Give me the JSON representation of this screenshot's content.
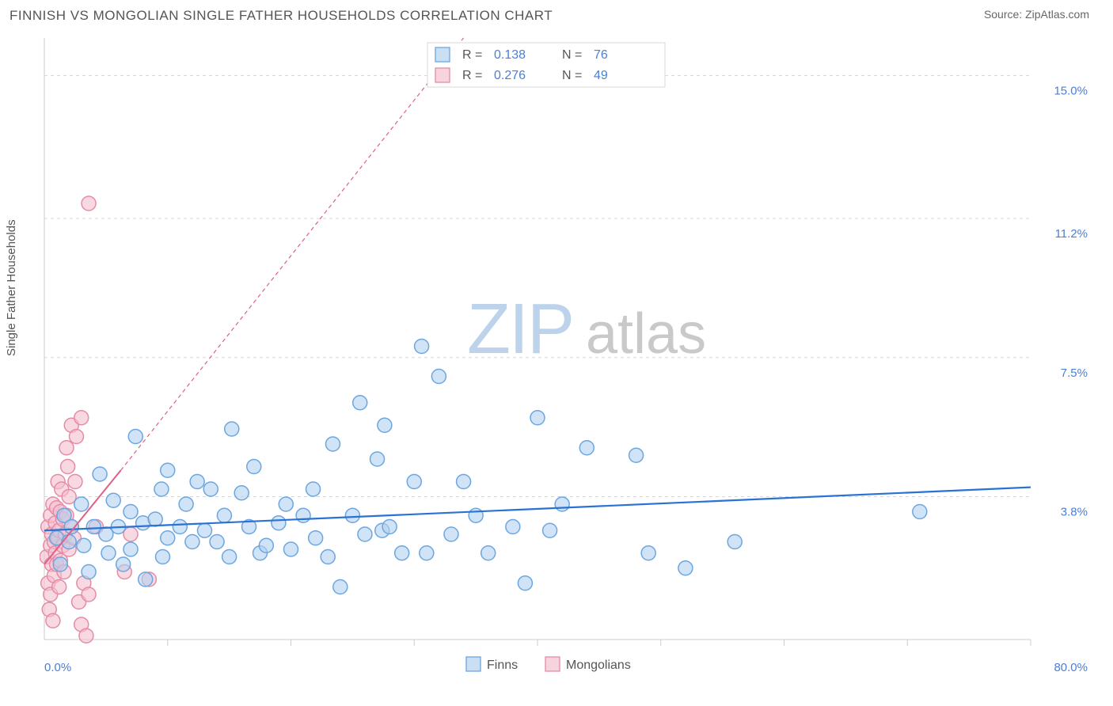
{
  "header": {
    "title": "FINNISH VS MONGOLIAN SINGLE FATHER HOUSEHOLDS CORRELATION CHART",
    "source_label": "Source: ",
    "source_value": "ZipAtlas.com"
  },
  "chart": {
    "type": "scatter",
    "ylabel": "Single Father Households",
    "xlim": [
      0,
      80
    ],
    "ylim": [
      0,
      16
    ],
    "xtick_step": 10,
    "xlabels": {
      "min": "0.0%",
      "max": "80.0%"
    },
    "yticks": [
      {
        "v": 3.8,
        "label": "3.8%"
      },
      {
        "v": 7.5,
        "label": "7.5%"
      },
      {
        "v": 11.2,
        "label": "11.2%"
      },
      {
        "v": 15.0,
        "label": "15.0%"
      }
    ],
    "grid_color": "#d8d8d8",
    "grid_dash": "4 4",
    "axis_color": "#cccccc",
    "background_color": "#ffffff",
    "marker_radius": 9,
    "marker_stroke_width": 1.5,
    "watermark": {
      "zip": "ZIP",
      "atlas": "atlas"
    },
    "legend_bottom": {
      "finns": "Finns",
      "mongolians": "Mongolians"
    },
    "stats": [
      {
        "series": "finns",
        "r_label": "R =",
        "r": "0.138",
        "n_label": "N =",
        "n": "76"
      },
      {
        "series": "mongolians",
        "r_label": "R =",
        "r": "0.276",
        "n_label": "N =",
        "n": "49"
      }
    ],
    "series": {
      "finns": {
        "fill": "#b3d1f0",
        "stroke": "#6ca6e0",
        "fill_opacity": 0.6,
        "trend": {
          "color": "#2a72d4",
          "width": 2.2,
          "dash": null,
          "ext_dash": "5 4",
          "p0": [
            0,
            2.9
          ],
          "p1": [
            80,
            4.05
          ]
        },
        "points": [
          [
            1,
            2.7
          ],
          [
            1.6,
            3.3
          ],
          [
            1.3,
            2.0
          ],
          [
            2,
            2.6
          ],
          [
            2.2,
            3.0
          ],
          [
            3,
            3.6
          ],
          [
            3.2,
            2.5
          ],
          [
            3.6,
            1.8
          ],
          [
            4,
            3.0
          ],
          [
            4.5,
            4.4
          ],
          [
            5,
            2.8
          ],
          [
            5.2,
            2.3
          ],
          [
            5.6,
            3.7
          ],
          [
            6,
            3.0
          ],
          [
            6.4,
            2.0
          ],
          [
            7,
            3.4
          ],
          [
            7,
            2.4
          ],
          [
            7.4,
            5.4
          ],
          [
            8,
            3.1
          ],
          [
            8.2,
            1.6
          ],
          [
            9,
            3.2
          ],
          [
            9.5,
            4.0
          ],
          [
            9.6,
            2.2
          ],
          [
            10,
            4.5
          ],
          [
            10,
            2.7
          ],
          [
            11,
            3.0
          ],
          [
            11.5,
            3.6
          ],
          [
            12,
            2.6
          ],
          [
            12.4,
            4.2
          ],
          [
            13,
            2.9
          ],
          [
            13.5,
            4.0
          ],
          [
            14,
            2.6
          ],
          [
            14.6,
            3.3
          ],
          [
            15,
            2.2
          ],
          [
            15.2,
            5.6
          ],
          [
            16,
            3.9
          ],
          [
            16.6,
            3.0
          ],
          [
            17,
            4.6
          ],
          [
            17.5,
            2.3
          ],
          [
            18,
            2.5
          ],
          [
            19,
            3.1
          ],
          [
            19.6,
            3.6
          ],
          [
            20,
            2.4
          ],
          [
            21,
            3.3
          ],
          [
            21.8,
            4.0
          ],
          [
            22,
            2.7
          ],
          [
            23,
            2.2
          ],
          [
            23.4,
            5.2
          ],
          [
            24,
            1.4
          ],
          [
            25,
            3.3
          ],
          [
            25.6,
            6.3
          ],
          [
            26,
            2.8
          ],
          [
            27,
            4.8
          ],
          [
            27.4,
            2.9
          ],
          [
            27.6,
            5.7
          ],
          [
            28,
            3.0
          ],
          [
            29,
            2.3
          ],
          [
            30,
            4.2
          ],
          [
            30.6,
            7.8
          ],
          [
            31,
            2.3
          ],
          [
            32,
            7.0
          ],
          [
            33,
            2.8
          ],
          [
            34,
            4.2
          ],
          [
            35,
            3.3
          ],
          [
            36,
            2.3
          ],
          [
            38,
            3.0
          ],
          [
            39,
            1.5
          ],
          [
            40,
            5.9
          ],
          [
            41,
            2.9
          ],
          [
            42,
            3.6
          ],
          [
            44,
            5.1
          ],
          [
            48,
            4.9
          ],
          [
            49,
            2.3
          ],
          [
            52,
            1.9
          ],
          [
            56,
            2.6
          ],
          [
            71,
            3.4
          ]
        ]
      },
      "mongolians": {
        "fill": "#f4c0ce",
        "stroke": "#e68ba5",
        "fill_opacity": 0.6,
        "trend": {
          "color": "#e06088",
          "width": 2.0,
          "dash": null,
          "ext_dash": "5 4",
          "p0": [
            0,
            2.0
          ],
          "p1": [
            6.2,
            4.5
          ],
          "pext": [
            34,
            16.0
          ]
        },
        "points": [
          [
            0.2,
            2.2
          ],
          [
            0.3,
            1.5
          ],
          [
            0.3,
            3.0
          ],
          [
            0.4,
            0.8
          ],
          [
            0.5,
            2.5
          ],
          [
            0.5,
            3.3
          ],
          [
            0.5,
            1.2
          ],
          [
            0.6,
            2.8
          ],
          [
            0.6,
            2.0
          ],
          [
            0.7,
            3.6
          ],
          [
            0.7,
            0.5
          ],
          [
            0.8,
            2.6
          ],
          [
            0.8,
            1.7
          ],
          [
            0.9,
            3.1
          ],
          [
            0.9,
            2.3
          ],
          [
            1.0,
            3.5
          ],
          [
            1.0,
            2.0
          ],
          [
            1.1,
            2.7
          ],
          [
            1.1,
            4.2
          ],
          [
            1.2,
            1.4
          ],
          [
            1.2,
            2.9
          ],
          [
            1.3,
            3.4
          ],
          [
            1.3,
            2.1
          ],
          [
            1.4,
            4.0
          ],
          [
            1.5,
            2.5
          ],
          [
            1.5,
            3.2
          ],
          [
            1.6,
            1.8
          ],
          [
            1.7,
            2.8
          ],
          [
            1.8,
            5.1
          ],
          [
            1.8,
            3.3
          ],
          [
            1.9,
            4.6
          ],
          [
            2.0,
            2.4
          ],
          [
            2.0,
            3.8
          ],
          [
            2.2,
            5.7
          ],
          [
            2.2,
            3.0
          ],
          [
            2.4,
            2.7
          ],
          [
            2.5,
            4.2
          ],
          [
            2.6,
            5.4
          ],
          [
            2.8,
            1.0
          ],
          [
            3.0,
            0.4
          ],
          [
            3.2,
            1.5
          ],
          [
            3.4,
            0.1
          ],
          [
            3.6,
            1.2
          ],
          [
            3.0,
            5.9
          ],
          [
            3.6,
            11.6
          ],
          [
            4.2,
            3.0
          ],
          [
            6.5,
            1.8
          ],
          [
            7.0,
            2.8
          ],
          [
            8.5,
            1.6
          ]
        ]
      }
    }
  }
}
